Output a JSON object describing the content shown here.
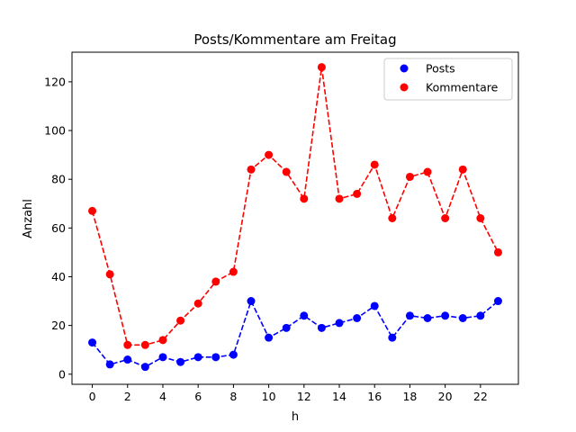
{
  "chart_data": {
    "type": "line",
    "title": "Posts/Kommentare am Freitag",
    "xlabel": "h",
    "ylabel": "Anzahl",
    "xlim": [
      -1.15,
      24.15
    ],
    "ylim": [
      -4.15,
      132.15
    ],
    "xticks": [
      0,
      2,
      4,
      6,
      8,
      10,
      12,
      14,
      16,
      18,
      20,
      22
    ],
    "yticks": [
      0,
      20,
      40,
      60,
      80,
      100,
      120
    ],
    "grid": false,
    "legend_position": "top-right",
    "x": [
      0,
      1,
      2,
      3,
      4,
      5,
      6,
      7,
      8,
      9,
      10,
      11,
      12,
      13,
      14,
      15,
      16,
      17,
      18,
      19,
      20,
      21,
      22,
      23
    ],
    "series": [
      {
        "name": "Posts",
        "color": "#0000ff",
        "values": [
          13,
          4,
          6,
          3,
          7,
          5,
          7,
          7,
          8,
          30,
          15,
          19,
          24,
          19,
          21,
          23,
          28,
          15,
          24,
          23,
          24,
          23,
          24,
          30
        ]
      },
      {
        "name": "Kommentare",
        "color": "#ff0000",
        "values": [
          67,
          41,
          12,
          12,
          14,
          22,
          29,
          38,
          42,
          84,
          90,
          83,
          72,
          126,
          72,
          74,
          86,
          64,
          81,
          83,
          64,
          84,
          64,
          50
        ]
      }
    ]
  }
}
